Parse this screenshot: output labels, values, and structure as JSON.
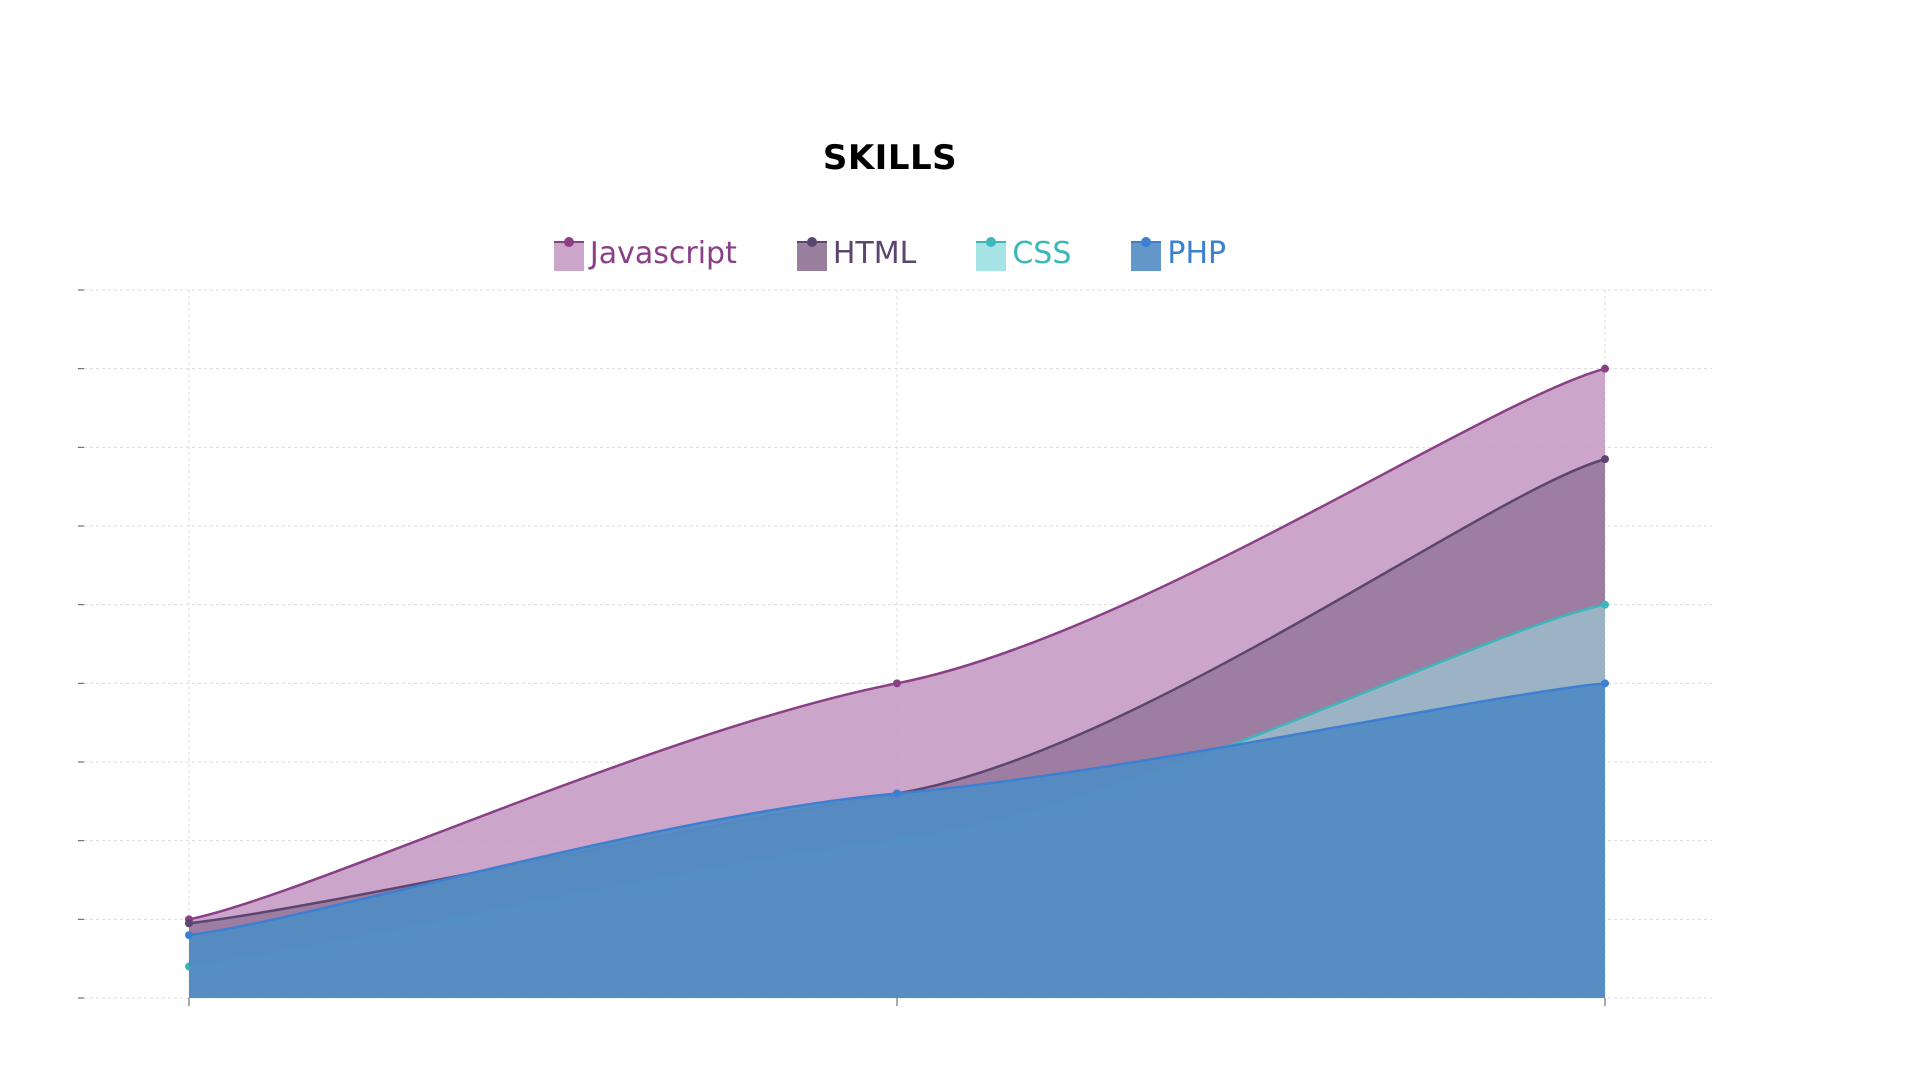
{
  "chart_data": {
    "type": "area",
    "title": "SKILLS",
    "categories": [
      "",
      "",
      ""
    ],
    "ylim": [
      0,
      90
    ],
    "grid": true,
    "legend_position": "top",
    "series": [
      {
        "name": "Javascript",
        "values": [
          10,
          40,
          80
        ],
        "color": "#8a3f86",
        "fill": "#c69bc4"
      },
      {
        "name": "HTML",
        "values": [
          9.5,
          26,
          68.5
        ],
        "color": "#5c4670",
        "fill": "#8e7094"
      },
      {
        "name": "CSS",
        "values": [
          4,
          20,
          50
        ],
        "color": "#3cb7b9",
        "fill": "#9be0e1"
      },
      {
        "name": "PHP",
        "values": [
          8,
          26,
          40
        ],
        "color": "#3d7fd0",
        "fill": "#528cc4"
      }
    ]
  }
}
